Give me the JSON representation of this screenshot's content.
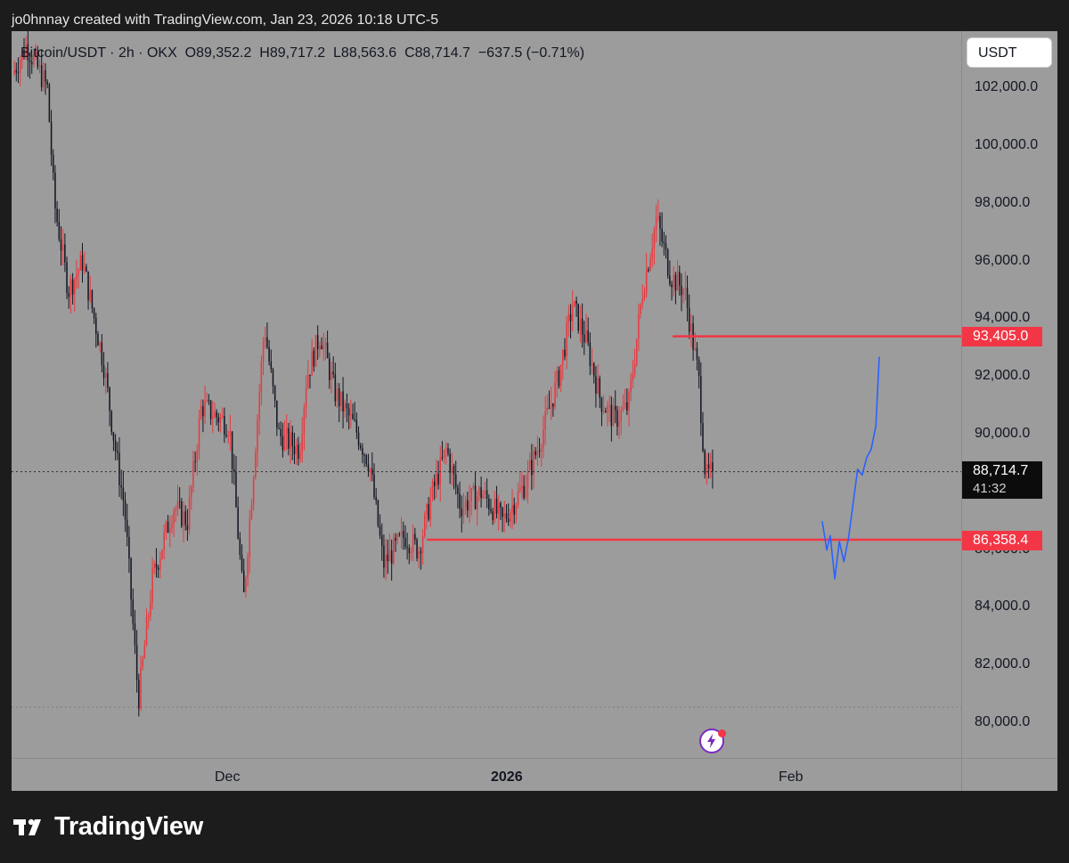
{
  "header": {
    "text": "jo0hnnay created with TradingView.com, Jan 23, 2026 10:18 UTC-5"
  },
  "legend": {
    "symbol": "Bitcoin/USDT · 2h · OKX",
    "open": "O89,352.2",
    "high": "H89,717.2",
    "low": "L88,563.6",
    "close": "C88,714.7",
    "change": "−637.5 (−0.71%)"
  },
  "currency_button": "USDT",
  "price_ticks": [
    "102,000.0",
    "100,000.0",
    "98,000.0",
    "96,000.0",
    "94,000.0",
    "92,000.0",
    "90,000.0",
    "86,000.0",
    "84,000.0",
    "82,000.0",
    "80,000.0"
  ],
  "time_ticks": [
    {
      "label": "Dec",
      "bold": false
    },
    {
      "label": "2026",
      "bold": true
    },
    {
      "label": "Feb",
      "bold": false
    }
  ],
  "price_badges": {
    "resistance": "93,405.0",
    "support": "86,358.4",
    "last_price": "88,714.7",
    "countdown": "41:32"
  },
  "brand": "TradingView",
  "colors": {
    "background": "#9c9c9c",
    "candle_up": "#e8393f",
    "candle_down": "#131722",
    "level_line": "#f23645",
    "projection": "#2962ff"
  },
  "chart_data": {
    "type": "candlestick",
    "symbol": "Bitcoin/USDT",
    "interval": "2h",
    "exchange": "OKX",
    "ylim": [
      79000,
      104200
    ],
    "x_ticks": [
      "Dec",
      "2026",
      "Feb"
    ],
    "last_price": 88714.7,
    "horizontal_levels": [
      93405.0,
      86358.4
    ],
    "price_path": [
      {
        "t": 0.0,
        "price": 102500
      },
      {
        "t": 0.02,
        "price": 103500
      },
      {
        "t": 0.05,
        "price": 102000
      },
      {
        "t": 0.06,
        "price": 98000
      },
      {
        "t": 0.08,
        "price": 95000
      },
      {
        "t": 0.1,
        "price": 96000
      },
      {
        "t": 0.13,
        "price": 92500
      },
      {
        "t": 0.15,
        "price": 89000
      },
      {
        "t": 0.16,
        "price": 87500
      },
      {
        "t": 0.18,
        "price": 80800
      },
      {
        "t": 0.2,
        "price": 85000
      },
      {
        "t": 0.23,
        "price": 87500
      },
      {
        "t": 0.25,
        "price": 87000
      },
      {
        "t": 0.27,
        "price": 91000
      },
      {
        "t": 0.3,
        "price": 90500
      },
      {
        "t": 0.31,
        "price": 90300
      },
      {
        "t": 0.33,
        "price": 84200
      },
      {
        "t": 0.36,
        "price": 93800
      },
      {
        "t": 0.38,
        "price": 90000
      },
      {
        "t": 0.41,
        "price": 89500
      },
      {
        "t": 0.42,
        "price": 92000
      },
      {
        "t": 0.44,
        "price": 93500
      },
      {
        "t": 0.46,
        "price": 91500
      },
      {
        "t": 0.49,
        "price": 90200
      },
      {
        "t": 0.51,
        "price": 89000
      },
      {
        "t": 0.53,
        "price": 85500
      },
      {
        "t": 0.56,
        "price": 86500
      },
      {
        "t": 0.58,
        "price": 86000
      },
      {
        "t": 0.6,
        "price": 88000
      },
      {
        "t": 0.62,
        "price": 89500
      },
      {
        "t": 0.64,
        "price": 87500
      },
      {
        "t": 0.67,
        "price": 88000
      },
      {
        "t": 0.7,
        "price": 87000
      },
      {
        "t": 0.73,
        "price": 88200
      },
      {
        "t": 0.75,
        "price": 89500
      },
      {
        "t": 0.78,
        "price": 92000
      },
      {
        "t": 0.8,
        "price": 94500
      },
      {
        "t": 0.82,
        "price": 93200
      },
      {
        "t": 0.84,
        "price": 91200
      },
      {
        "t": 0.86,
        "price": 90500
      },
      {
        "t": 0.88,
        "price": 91000
      },
      {
        "t": 0.9,
        "price": 95000
      },
      {
        "t": 0.92,
        "price": 97500
      },
      {
        "t": 0.94,
        "price": 95500
      },
      {
        "t": 0.96,
        "price": 95000
      },
      {
        "t": 0.97,
        "price": 93500
      },
      {
        "t": 0.98,
        "price": 92000
      },
      {
        "t": 0.99,
        "price": 88500
      },
      {
        "t": 1.0,
        "price": 88714.7
      }
    ],
    "projection_path": [
      {
        "t": 0.0,
        "price": 87000
      },
      {
        "t": 0.08,
        "price": 86000
      },
      {
        "t": 0.14,
        "price": 86500
      },
      {
        "t": 0.22,
        "price": 85000
      },
      {
        "t": 0.3,
        "price": 86300
      },
      {
        "t": 0.38,
        "price": 85600
      },
      {
        "t": 0.46,
        "price": 86400
      },
      {
        "t": 0.54,
        "price": 87600
      },
      {
        "t": 0.62,
        "price": 88800
      },
      {
        "t": 0.7,
        "price": 88600
      },
      {
        "t": 0.78,
        "price": 89200
      },
      {
        "t": 0.86,
        "price": 89500
      },
      {
        "t": 0.94,
        "price": 90300
      },
      {
        "t": 1.0,
        "price": 92700
      }
    ]
  }
}
